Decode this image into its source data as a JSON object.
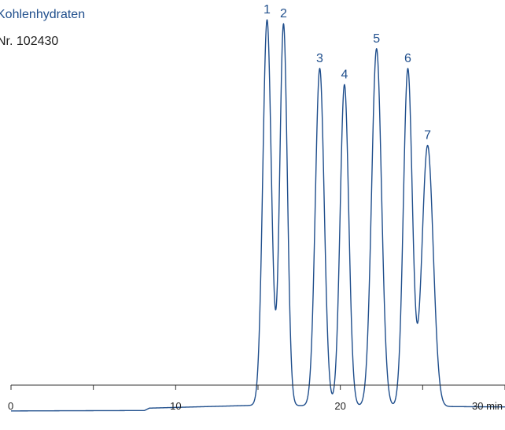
{
  "chart_data": {
    "type": "line",
    "title": "Kohlenhydraten",
    "subtitle": "Nr. 102430",
    "x_unit": "min",
    "x_ticks": [
      "0",
      "10",
      "20",
      "30 min"
    ],
    "xlim": [
      0,
      30
    ],
    "ylim": [
      0,
      100
    ],
    "line_color": "#1f4e8c",
    "axis_color": "#333333",
    "baseline": [
      {
        "x": 0,
        "y": 2.0
      },
      {
        "x": 8.1,
        "y": 2.1
      },
      {
        "x": 8.4,
        "y": 2.7
      },
      {
        "x": 14.8,
        "y": 3.4
      },
      {
        "x": 30,
        "y": 3.0
      }
    ],
    "peaks": [
      {
        "label": "1",
        "x": 15.55,
        "height": 96,
        "width": 0.26
      },
      {
        "label": "2",
        "x": 16.55,
        "height": 95,
        "width": 0.23
      },
      {
        "label": "3",
        "x": 18.75,
        "height": 84,
        "width": 0.27
      },
      {
        "label": "4",
        "x": 20.25,
        "height": 80,
        "width": 0.26
      },
      {
        "label": "5",
        "x": 22.2,
        "height": 89,
        "width": 0.3
      },
      {
        "label": "6",
        "x": 24.1,
        "height": 84,
        "width": 0.27
      },
      {
        "label": "7",
        "x": 25.3,
        "height": 65,
        "width": 0.34
      }
    ]
  }
}
